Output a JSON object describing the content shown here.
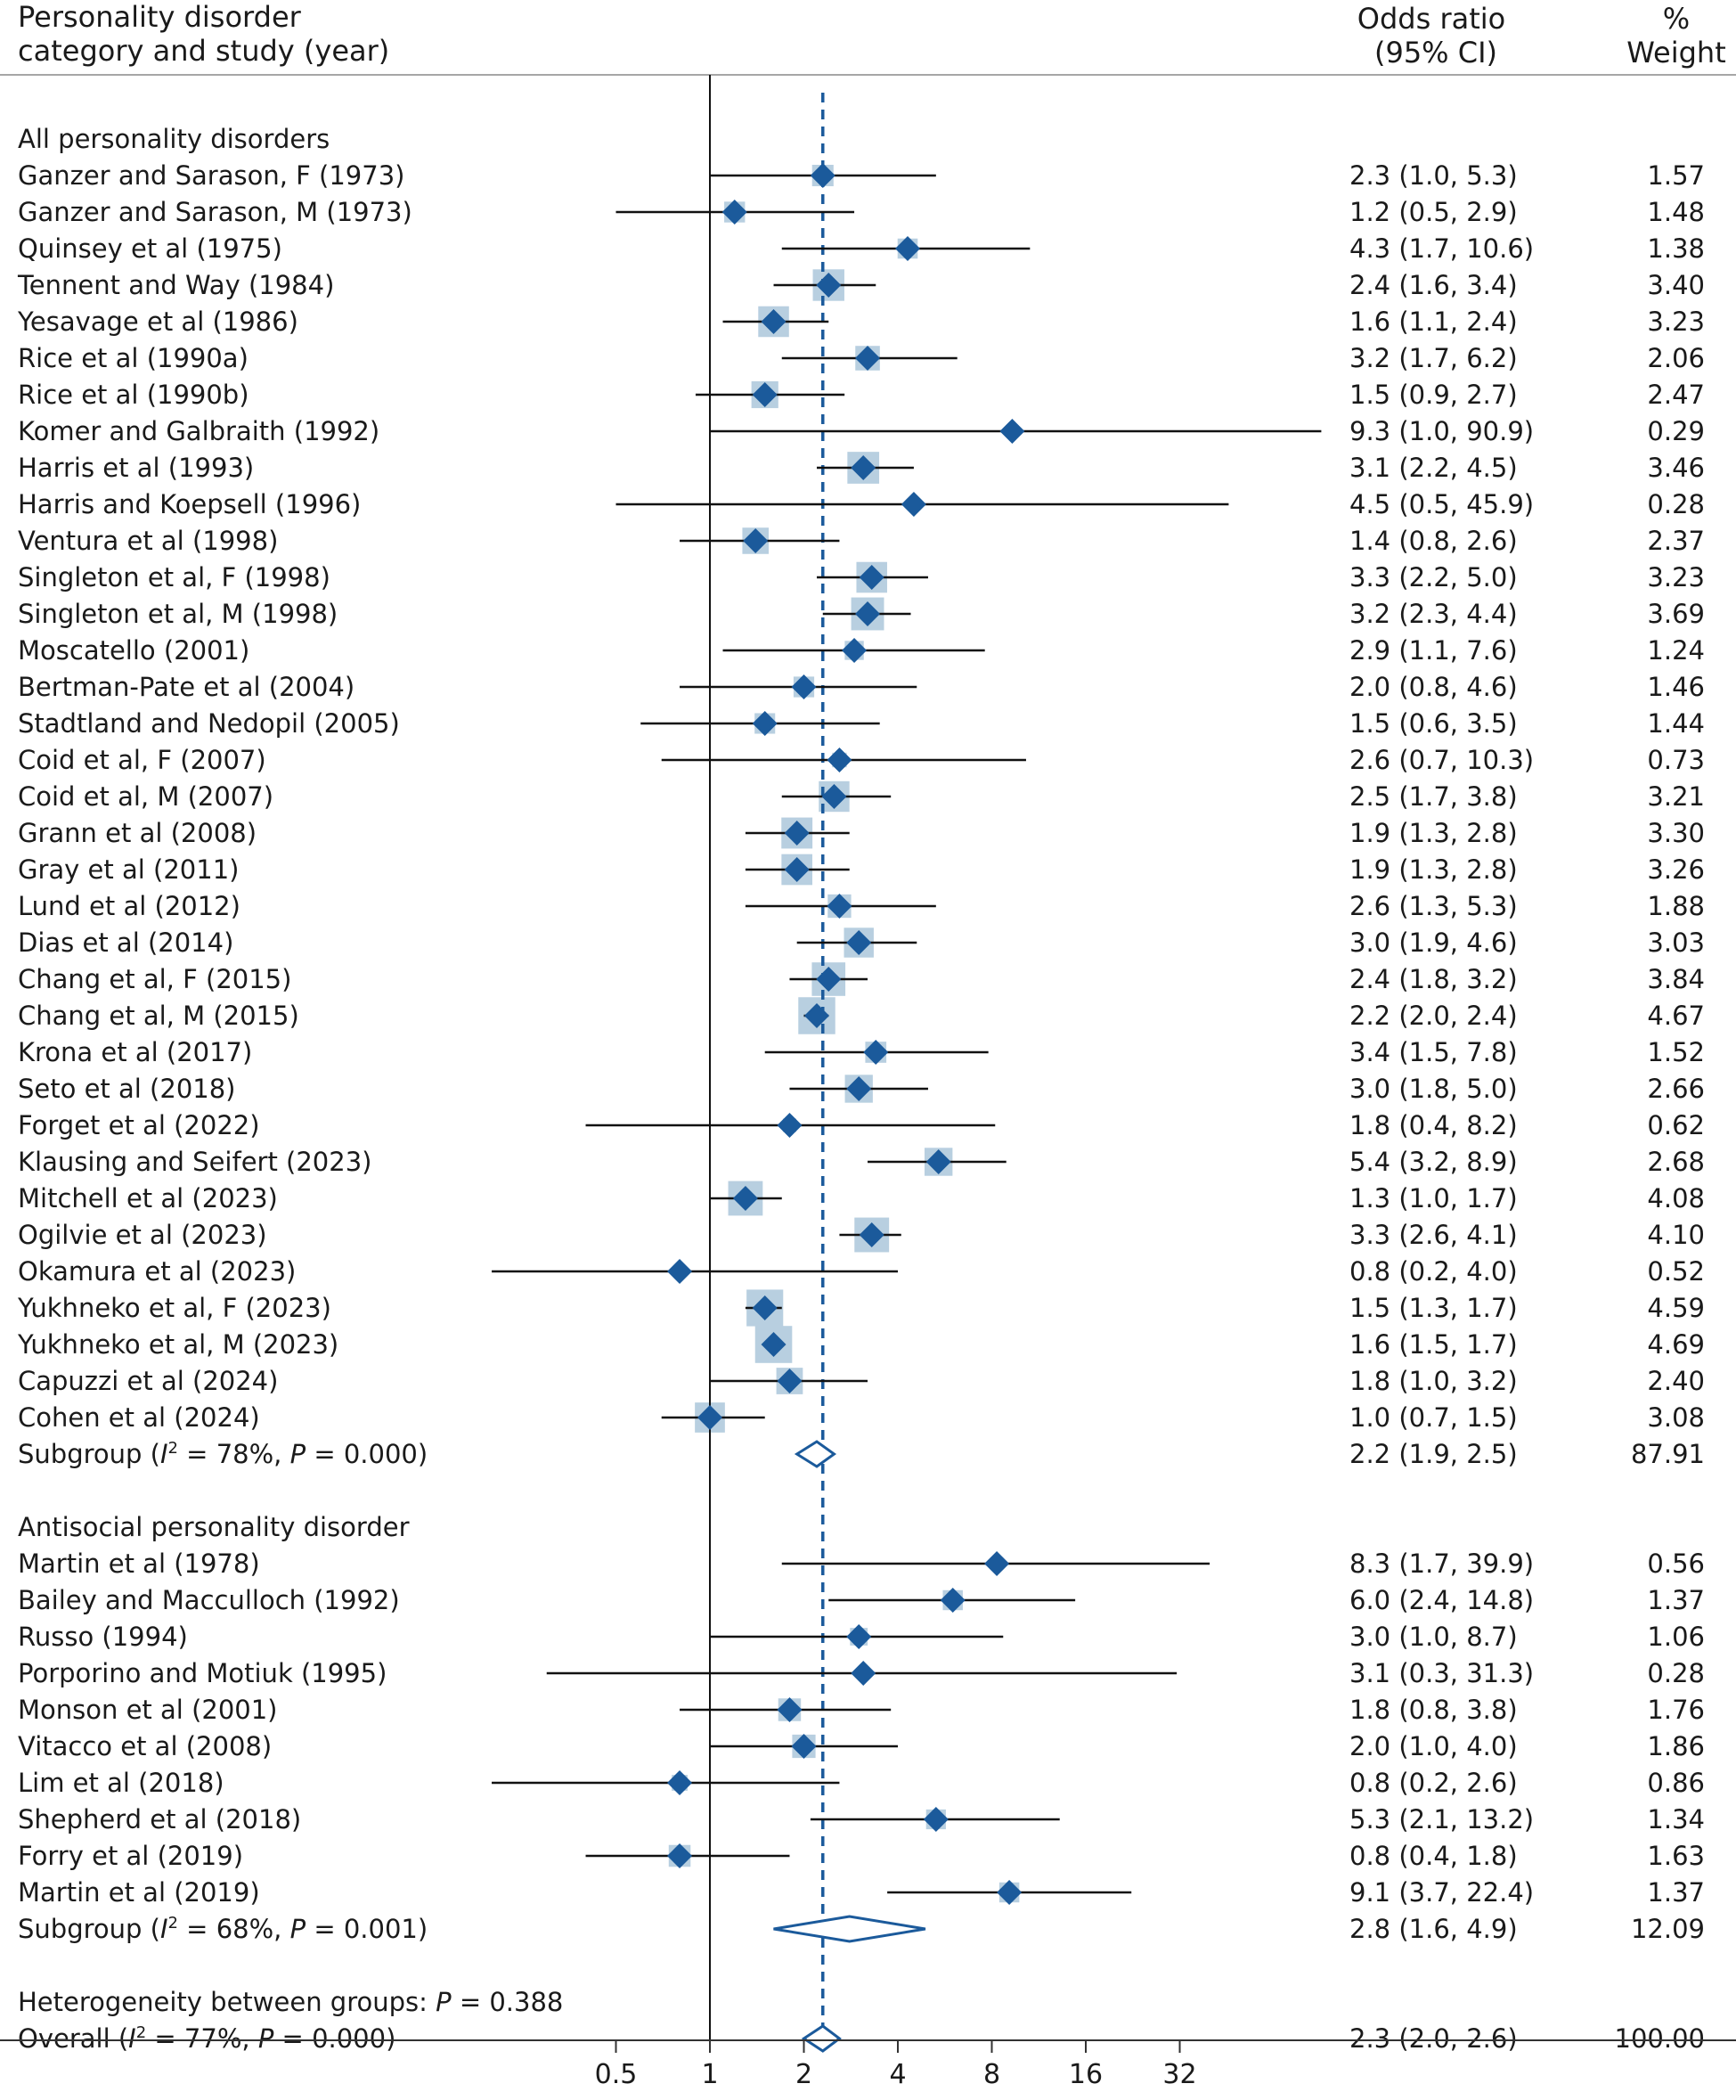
{
  "header": {
    "label_col_line1": "Personality disorder",
    "label_col_line2": "category and study (year)",
    "or_line1": "Odds ratio",
    "or_line2": "(95% CI)",
    "weight_line1": "%",
    "weight_line2": "Weight"
  },
  "colors": {
    "marker": "#1b5a9b",
    "weight_box": "#b8cfe0",
    "ci_line": "#111111",
    "overall_line": "#1b5a9b"
  },
  "chart_data": {
    "type": "forest",
    "x_scale": "log2",
    "x_ticks": [
      0.5,
      1,
      2,
      4,
      8,
      16,
      32
    ],
    "x_tick_labels": [
      "0.5",
      "1",
      "2",
      "4",
      "8",
      "16",
      "32"
    ],
    "null_line": 1,
    "overall_estimate": 2.3,
    "groups": [
      {
        "name": "All personality disorders",
        "studies": [
          {
            "study": "Ganzer and Sarason, F (1973)",
            "or": 2.3,
            "lo": 1.0,
            "hi": 5.3,
            "or_text": "2.3 (1.0, 5.3)",
            "weight": "1.57"
          },
          {
            "study": "Ganzer and Sarason, M (1973)",
            "or": 1.2,
            "lo": 0.5,
            "hi": 2.9,
            "or_text": "1.2 (0.5, 2.9)",
            "weight": "1.48"
          },
          {
            "study": "Quinsey et al (1975)",
            "or": 4.3,
            "lo": 1.7,
            "hi": 10.6,
            "or_text": "4.3 (1.7, 10.6)",
            "weight": "1.38"
          },
          {
            "study": "Tennent and Way (1984)",
            "or": 2.4,
            "lo": 1.6,
            "hi": 3.4,
            "or_text": "2.4 (1.6, 3.4)",
            "weight": "3.40"
          },
          {
            "study": "Yesavage et al (1986)",
            "or": 1.6,
            "lo": 1.1,
            "hi": 2.4,
            "or_text": "1.6 (1.1, 2.4)",
            "weight": "3.23"
          },
          {
            "study": "Rice et al (1990a)",
            "or": 3.2,
            "lo": 1.7,
            "hi": 6.2,
            "or_text": "3.2 (1.7, 6.2)",
            "weight": "2.06"
          },
          {
            "study": "Rice et al (1990b)",
            "or": 1.5,
            "lo": 0.9,
            "hi": 2.7,
            "or_text": "1.5 (0.9, 2.7)",
            "weight": "2.47"
          },
          {
            "study": "Komer and Galbraith (1992)",
            "or": 9.3,
            "lo": 1.0,
            "hi": 90.9,
            "or_text": "9.3 (1.0, 90.9)",
            "weight": "0.29"
          },
          {
            "study": "Harris et al (1993)",
            "or": 3.1,
            "lo": 2.2,
            "hi": 4.5,
            "or_text": "3.1 (2.2, 4.5)",
            "weight": "3.46"
          },
          {
            "study": "Harris and Koepsell (1996)",
            "or": 4.5,
            "lo": 0.5,
            "hi": 45.9,
            "or_text": "4.5 (0.5, 45.9)",
            "weight": "0.28"
          },
          {
            "study": "Ventura et al (1998)",
            "or": 1.4,
            "lo": 0.8,
            "hi": 2.6,
            "or_text": "1.4 (0.8, 2.6)",
            "weight": "2.37"
          },
          {
            "study": "Singleton et al, F (1998)",
            "or": 3.3,
            "lo": 2.2,
            "hi": 5.0,
            "or_text": "3.3 (2.2, 5.0)",
            "weight": "3.23"
          },
          {
            "study": "Singleton et al, M (1998)",
            "or": 3.2,
            "lo": 2.3,
            "hi": 4.4,
            "or_text": "3.2 (2.3, 4.4)",
            "weight": "3.69"
          },
          {
            "study": "Moscatello (2001)",
            "or": 2.9,
            "lo": 1.1,
            "hi": 7.6,
            "or_text": "2.9 (1.1, 7.6)",
            "weight": "1.24"
          },
          {
            "study": "Bertman-Pate et al (2004)",
            "or": 2.0,
            "lo": 0.8,
            "hi": 4.6,
            "or_text": "2.0 (0.8, 4.6)",
            "weight": "1.46"
          },
          {
            "study": "Stadtland and Nedopil (2005)",
            "or": 1.5,
            "lo": 0.6,
            "hi": 3.5,
            "or_text": "1.5 (0.6, 3.5)",
            "weight": "1.44"
          },
          {
            "study": "Coid et al, F (2007)",
            "or": 2.6,
            "lo": 0.7,
            "hi": 10.3,
            "or_text": "2.6 (0.7, 10.3)",
            "weight": "0.73"
          },
          {
            "study": "Coid et al, M (2007)",
            "or": 2.5,
            "lo": 1.7,
            "hi": 3.8,
            "or_text": "2.5 (1.7, 3.8)",
            "weight": "3.21"
          },
          {
            "study": "Grann et al (2008)",
            "or": 1.9,
            "lo": 1.3,
            "hi": 2.8,
            "or_text": "1.9 (1.3, 2.8)",
            "weight": "3.30"
          },
          {
            "study": "Gray et al (2011)",
            "or": 1.9,
            "lo": 1.3,
            "hi": 2.8,
            "or_text": "1.9 (1.3, 2.8)",
            "weight": "3.26"
          },
          {
            "study": "Lund et al (2012)",
            "or": 2.6,
            "lo": 1.3,
            "hi": 5.3,
            "or_text": "2.6 (1.3, 5.3)",
            "weight": "1.88"
          },
          {
            "study": "Dias et al (2014)",
            "or": 3.0,
            "lo": 1.9,
            "hi": 4.6,
            "or_text": "3.0 (1.9, 4.6)",
            "weight": "3.03"
          },
          {
            "study": "Chang et al, F (2015)",
            "or": 2.4,
            "lo": 1.8,
            "hi": 3.2,
            "or_text": "2.4 (1.8, 3.2)",
            "weight": "3.84"
          },
          {
            "study": "Chang et al, M (2015)",
            "or": 2.2,
            "lo": 2.0,
            "hi": 2.4,
            "or_text": "2.2 (2.0, 2.4)",
            "weight": "4.67"
          },
          {
            "study": "Krona et al (2017)",
            "or": 3.4,
            "lo": 1.5,
            "hi": 7.8,
            "or_text": "3.4 (1.5, 7.8)",
            "weight": "1.52"
          },
          {
            "study": "Seto et al (2018)",
            "or": 3.0,
            "lo": 1.8,
            "hi": 5.0,
            "or_text": "3.0 (1.8, 5.0)",
            "weight": "2.66"
          },
          {
            "study": "Forget et al (2022)",
            "or": 1.8,
            "lo": 0.4,
            "hi": 8.2,
            "or_text": "1.8 (0.4, 8.2)",
            "weight": "0.62"
          },
          {
            "study": "Klausing and Seifert (2023)",
            "or": 5.4,
            "lo": 3.2,
            "hi": 8.9,
            "or_text": "5.4 (3.2, 8.9)",
            "weight": "2.68"
          },
          {
            "study": "Mitchell et al (2023)",
            "or": 1.3,
            "lo": 1.0,
            "hi": 1.7,
            "or_text": "1.3 (1.0, 1.7)",
            "weight": "4.08"
          },
          {
            "study": "Ogilvie et al (2023)",
            "or": 3.3,
            "lo": 2.6,
            "hi": 4.1,
            "or_text": "3.3 (2.6, 4.1)",
            "weight": "4.10"
          },
          {
            "study": "Okamura et al (2023)",
            "or": 0.8,
            "lo": 0.2,
            "hi": 4.0,
            "or_text": "0.8 (0.2, 4.0)",
            "weight": "0.52"
          },
          {
            "study": "Yukhneko et al, F (2023)",
            "or": 1.5,
            "lo": 1.3,
            "hi": 1.7,
            "or_text": "1.5 (1.3, 1.7)",
            "weight": "4.59"
          },
          {
            "study": "Yukhneko et al, M (2023)",
            "or": 1.6,
            "lo": 1.5,
            "hi": 1.7,
            "or_text": "1.6 (1.5, 1.7)",
            "weight": "4.69"
          },
          {
            "study": "Capuzzi et al (2024)",
            "or": 1.8,
            "lo": 1.0,
            "hi": 3.2,
            "or_text": "1.8 (1.0, 3.2)",
            "weight": "2.40"
          },
          {
            "study": "Cohen et al (2024)",
            "or": 1.0,
            "lo": 0.7,
            "hi": 1.5,
            "or_text": "1.0 (0.7, 1.5)",
            "weight": "3.08"
          }
        ],
        "subgroup": {
          "i2": "78%",
          "p": "0.000",
          "or": 2.2,
          "lo": 1.9,
          "hi": 2.5,
          "or_text": "2.2 (1.9, 2.5)",
          "weight": "87.91"
        }
      },
      {
        "name": "Antisocial personality disorder",
        "studies": [
          {
            "study": "Martin et al (1978)",
            "or": 8.3,
            "lo": 1.7,
            "hi": 39.9,
            "or_text": "8.3 (1.7, 39.9)",
            "weight": "0.56"
          },
          {
            "study": "Bailey and Macculloch (1992)",
            "or": 6.0,
            "lo": 2.4,
            "hi": 14.8,
            "or_text": "6.0 (2.4, 14.8)",
            "weight": "1.37"
          },
          {
            "study": "Russo (1994)",
            "or": 3.0,
            "lo": 1.0,
            "hi": 8.7,
            "or_text": "3.0 (1.0, 8.7)",
            "weight": "1.06"
          },
          {
            "study": "Porporino and Motiuk (1995)",
            "or": 3.1,
            "lo": 0.3,
            "hi": 31.3,
            "or_text": "3.1 (0.3, 31.3)",
            "weight": "0.28"
          },
          {
            "study": "Monson et al (2001)",
            "or": 1.8,
            "lo": 0.8,
            "hi": 3.8,
            "or_text": "1.8 (0.8, 3.8)",
            "weight": "1.76"
          },
          {
            "study": "Vitacco et al (2008)",
            "or": 2.0,
            "lo": 1.0,
            "hi": 4.0,
            "or_text": "2.0 (1.0, 4.0)",
            "weight": "1.86"
          },
          {
            "study": "Lim et al (2018)",
            "or": 0.8,
            "lo": 0.2,
            "hi": 2.6,
            "or_text": "0.8 (0.2, 2.6)",
            "weight": "0.86"
          },
          {
            "study": "Shepherd et al (2018)",
            "or": 5.3,
            "lo": 2.1,
            "hi": 13.2,
            "or_text": "5.3 (2.1, 13.2)",
            "weight": "1.34"
          },
          {
            "study": "Forry et al (2019)",
            "or": 0.8,
            "lo": 0.4,
            "hi": 1.8,
            "or_text": "0.8 (0.4, 1.8)",
            "weight": "1.63"
          },
          {
            "study": "Martin et al (2019)",
            "or": 9.1,
            "lo": 3.7,
            "hi": 22.4,
            "or_text": "9.1 (3.7, 22.4)",
            "weight": "1.37"
          }
        ],
        "subgroup": {
          "i2": "68%",
          "p": "0.001",
          "or": 2.8,
          "lo": 1.6,
          "hi": 4.9,
          "or_text": "2.8 (1.6, 4.9)",
          "weight": "12.09"
        }
      }
    ],
    "heterogeneity_between_groups": {
      "label": "Heterogeneity between groups: ",
      "p": "0.388"
    },
    "overall": {
      "i2": "77%",
      "p": "0.000",
      "or": 2.3,
      "lo": 2.0,
      "hi": 2.6,
      "or_text": "2.3 (2.0, 2.6)",
      "weight": "100.00"
    }
  }
}
